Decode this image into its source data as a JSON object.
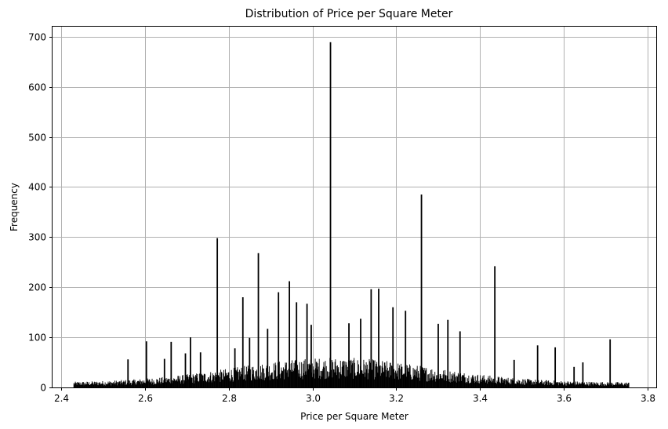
{
  "chart_data": {
    "type": "bar",
    "title": "Distribution of Price per Square Meter",
    "xlabel": "Price per Square Meter",
    "ylabel": "Frequency",
    "xlim": [
      2.38,
      3.82
    ],
    "ylim": [
      0,
      720
    ],
    "grid": true,
    "bar_color": "#000000",
    "xticks": [
      "2.4",
      "2.6",
      "2.8",
      "3.0",
      "3.2",
      "3.4",
      "3.6",
      "3.8"
    ],
    "yticks": [
      "0",
      "100",
      "200",
      "300",
      "400",
      "500",
      "600",
      "700"
    ],
    "xtick_values": [
      2.4,
      2.6,
      2.8,
      3.0,
      3.2,
      3.4,
      3.6,
      3.8
    ],
    "ytick_values": [
      0,
      100,
      200,
      300,
      400,
      500,
      600,
      700
    ],
    "data_range": [
      2.43,
      3.755
    ],
    "peaks": [
      {
        "x": 3.043,
        "count": 689
      },
      {
        "x": 3.26,
        "count": 385
      },
      {
        "x": 2.773,
        "count": 298
      },
      {
        "x": 2.871,
        "count": 268
      },
      {
        "x": 3.435,
        "count": 242
      },
      {
        "x": 2.945,
        "count": 212
      },
      {
        "x": 3.158,
        "count": 197
      },
      {
        "x": 3.14,
        "count": 196
      },
      {
        "x": 2.919,
        "count": 190
      },
      {
        "x": 2.834,
        "count": 180
      },
      {
        "x": 2.962,
        "count": 170
      },
      {
        "x": 2.987,
        "count": 167
      },
      {
        "x": 3.192,
        "count": 160
      },
      {
        "x": 3.222,
        "count": 153
      },
      {
        "x": 3.115,
        "count": 137
      },
      {
        "x": 3.323,
        "count": 135
      },
      {
        "x": 3.3,
        "count": 127
      },
      {
        "x": 3.087,
        "count": 128
      },
      {
        "x": 2.997,
        "count": 125
      },
      {
        "x": 3.352,
        "count": 112
      },
      {
        "x": 2.893,
        "count": 117
      },
      {
        "x": 2.709,
        "count": 100
      },
      {
        "x": 2.85,
        "count": 99
      },
      {
        "x": 3.71,
        "count": 96
      },
      {
        "x": 2.604,
        "count": 92
      },
      {
        "x": 2.663,
        "count": 91
      },
      {
        "x": 3.537,
        "count": 84
      },
      {
        "x": 3.579,
        "count": 80
      },
      {
        "x": 2.815,
        "count": 78
      },
      {
        "x": 2.697,
        "count": 68
      },
      {
        "x": 2.733,
        "count": 70
      },
      {
        "x": 2.56,
        "count": 56
      },
      {
        "x": 2.647,
        "count": 57
      },
      {
        "x": 3.481,
        "count": 55
      },
      {
        "x": 3.645,
        "count": 50
      },
      {
        "x": 3.624,
        "count": 41
      }
    ]
  }
}
